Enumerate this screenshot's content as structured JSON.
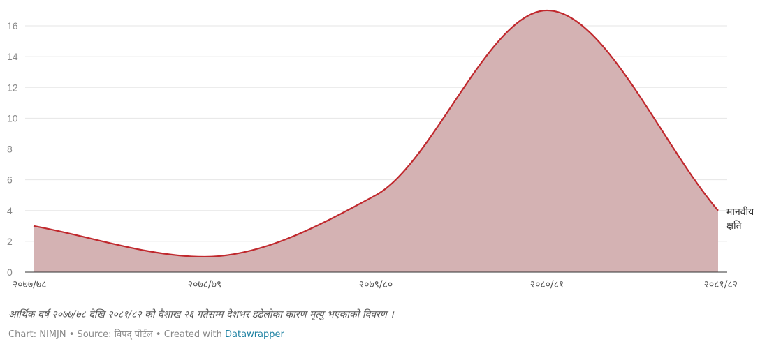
{
  "chart_data": {
    "type": "area",
    "x": [
      "२०७७/७८",
      "२०७८/७९",
      "२०७९/८०",
      "२०८०/८१",
      "२०८१/८२"
    ],
    "series": [
      {
        "name": "मानवीय क्षति",
        "values": [
          3,
          1,
          5,
          17,
          4
        ]
      }
    ],
    "ylim": [
      0,
      16
    ],
    "yticks": [
      0,
      2,
      4,
      6,
      8,
      10,
      12,
      14,
      16
    ],
    "grid": true,
    "colors": {
      "line": "#c0282d",
      "fill": "#d4b2b3"
    }
  },
  "caption": "आर्थिक वर्ष २०७७/७८ देखि २०८१/८२ को वैशाख २६ गतेसम्म देशभर डढेलोका कारण मृत्यु भएकाको विवरण ।",
  "credits": {
    "prefix": "Chart: NIMJN • Source: विपद् पोर्टल • Created with ",
    "link": "Datawrapper"
  }
}
